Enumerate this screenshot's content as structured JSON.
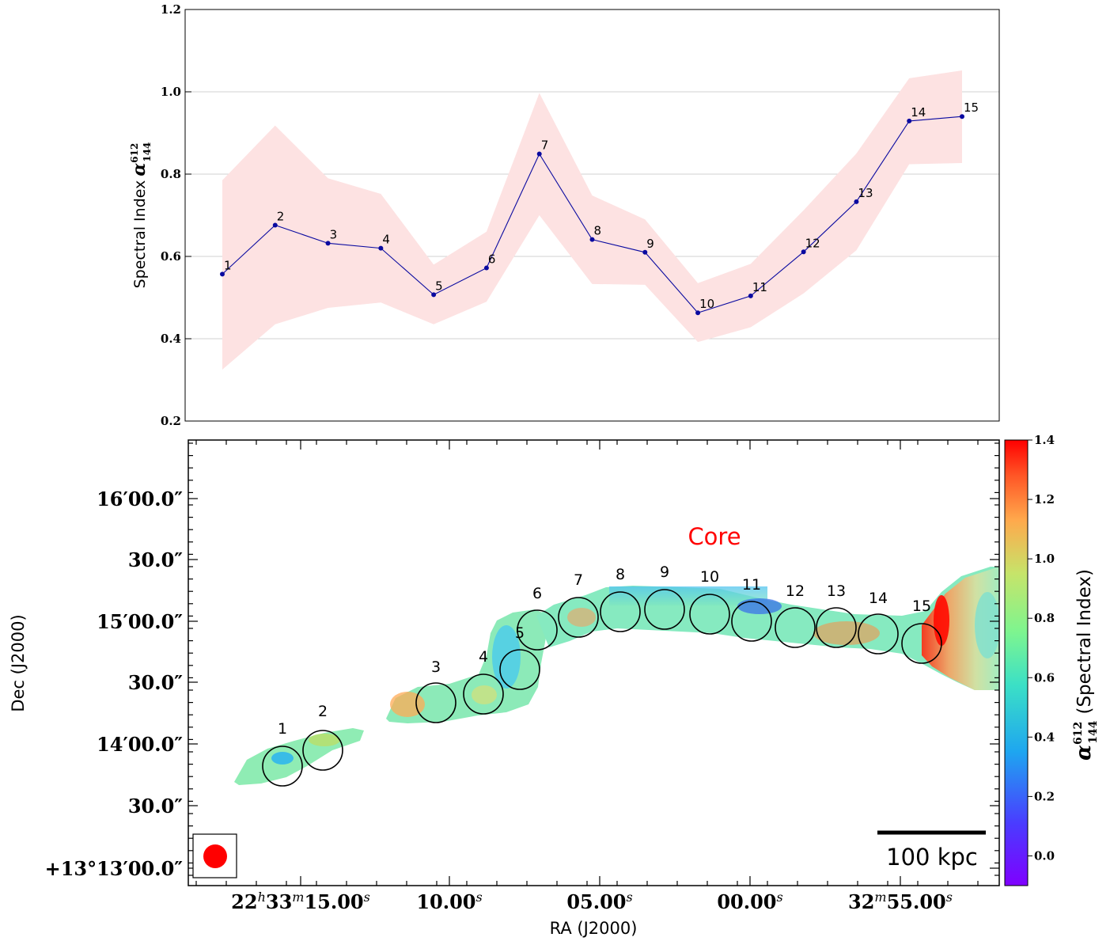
{
  "chart_data": [
    {
      "type": "line",
      "ylabel": "Spectral Index",
      "ylabel_symbol": "α",
      "ylabel_sup": "612",
      "ylabel_sub": "144",
      "ylim": [
        0.2,
        1.2
      ],
      "yticks": [
        "0.2",
        "0.4",
        "0.6",
        "0.8",
        "1.0",
        "1.2"
      ],
      "grid": "horizontal",
      "series": [
        {
          "color": "#0a0aa0",
          "fill_color": "#fde2e2",
          "points": [
            {
              "label": "1",
              "value": 0.557,
              "lower": 0.325,
              "upper": 0.785
            },
            {
              "label": "2",
              "value": 0.676,
              "lower": 0.435,
              "upper": 0.918
            },
            {
              "label": "3",
              "value": 0.632,
              "lower": 0.475,
              "upper": 0.79
            },
            {
              "label": "4",
              "value": 0.62,
              "lower": 0.488,
              "upper": 0.752
            },
            {
              "label": "5",
              "value": 0.507,
              "lower": 0.435,
              "upper": 0.58
            },
            {
              "label": "6",
              "value": 0.572,
              "lower": 0.49,
              "upper": 0.66
            },
            {
              "label": "7",
              "value": 0.849,
              "lower": 0.7,
              "upper": 0.997
            },
            {
              "label": "8",
              "value": 0.641,
              "lower": 0.533,
              "upper": 0.748
            },
            {
              "label": "9",
              "value": 0.61,
              "lower": 0.531,
              "upper": 0.69
            },
            {
              "label": "10",
              "value": 0.463,
              "lower": 0.392,
              "upper": 0.535
            },
            {
              "label": "11",
              "value": 0.504,
              "lower": 0.428,
              "upper": 0.582
            },
            {
              "label": "12",
              "value": 0.611,
              "lower": 0.51,
              "upper": 0.712
            },
            {
              "label": "13",
              "value": 0.733,
              "lower": 0.615,
              "upper": 0.85
            },
            {
              "label": "14",
              "value": 0.929,
              "lower": 0.824,
              "upper": 1.033
            },
            {
              "label": "15",
              "value": 0.94,
              "lower": 0.827,
              "upper": 1.052
            }
          ]
        }
      ]
    },
    {
      "type": "heatmap",
      "xlabel": "RA (J2000)",
      "ylabel": "Dec (J2000)",
      "xticks": [
        {
          "main": "22",
          "u1": "h",
          "mid": "33",
          "u2": "m",
          "tail": "15.00",
          "u3": "s"
        },
        {
          "main": "",
          "u1": "",
          "mid": "",
          "u2": "",
          "tail": "10.00",
          "u3": "s"
        },
        {
          "main": "",
          "u1": "",
          "mid": "",
          "u2": "",
          "tail": "05.00",
          "u3": "s"
        },
        {
          "main": "",
          "u1": "",
          "mid": "",
          "u2": "",
          "tail": "00.00",
          "u3": "s"
        },
        {
          "main": "",
          "u1": "",
          "mid": "32",
          "u2": "m",
          "tail": "55.00",
          "u3": "s"
        }
      ],
      "yticks": [
        "16′00.0″",
        "30.0″",
        "15′00.0″",
        "30.0″",
        "14′00.0″",
        "30.0″",
        "+13°13′00.0″"
      ],
      "colorbar": {
        "label": "(Spectral Index)",
        "label_symbol": "α",
        "label_sup": "612",
        "label_sub": "144",
        "range": [
          -0.1,
          1.4
        ],
        "ticks": [
          "0.0",
          "0.2",
          "0.4",
          "0.6",
          "0.8",
          "1.0",
          "1.2",
          "1.4"
        ]
      },
      "annotation": "Core",
      "annotation_color": "#ff0000",
      "scalebar_label": "100 kpc",
      "beam_color": "#ff0000",
      "regions": [
        "1",
        "2",
        "3",
        "4",
        "5",
        "6",
        "7",
        "8",
        "9",
        "10",
        "11",
        "12",
        "13",
        "14",
        "15"
      ]
    }
  ]
}
